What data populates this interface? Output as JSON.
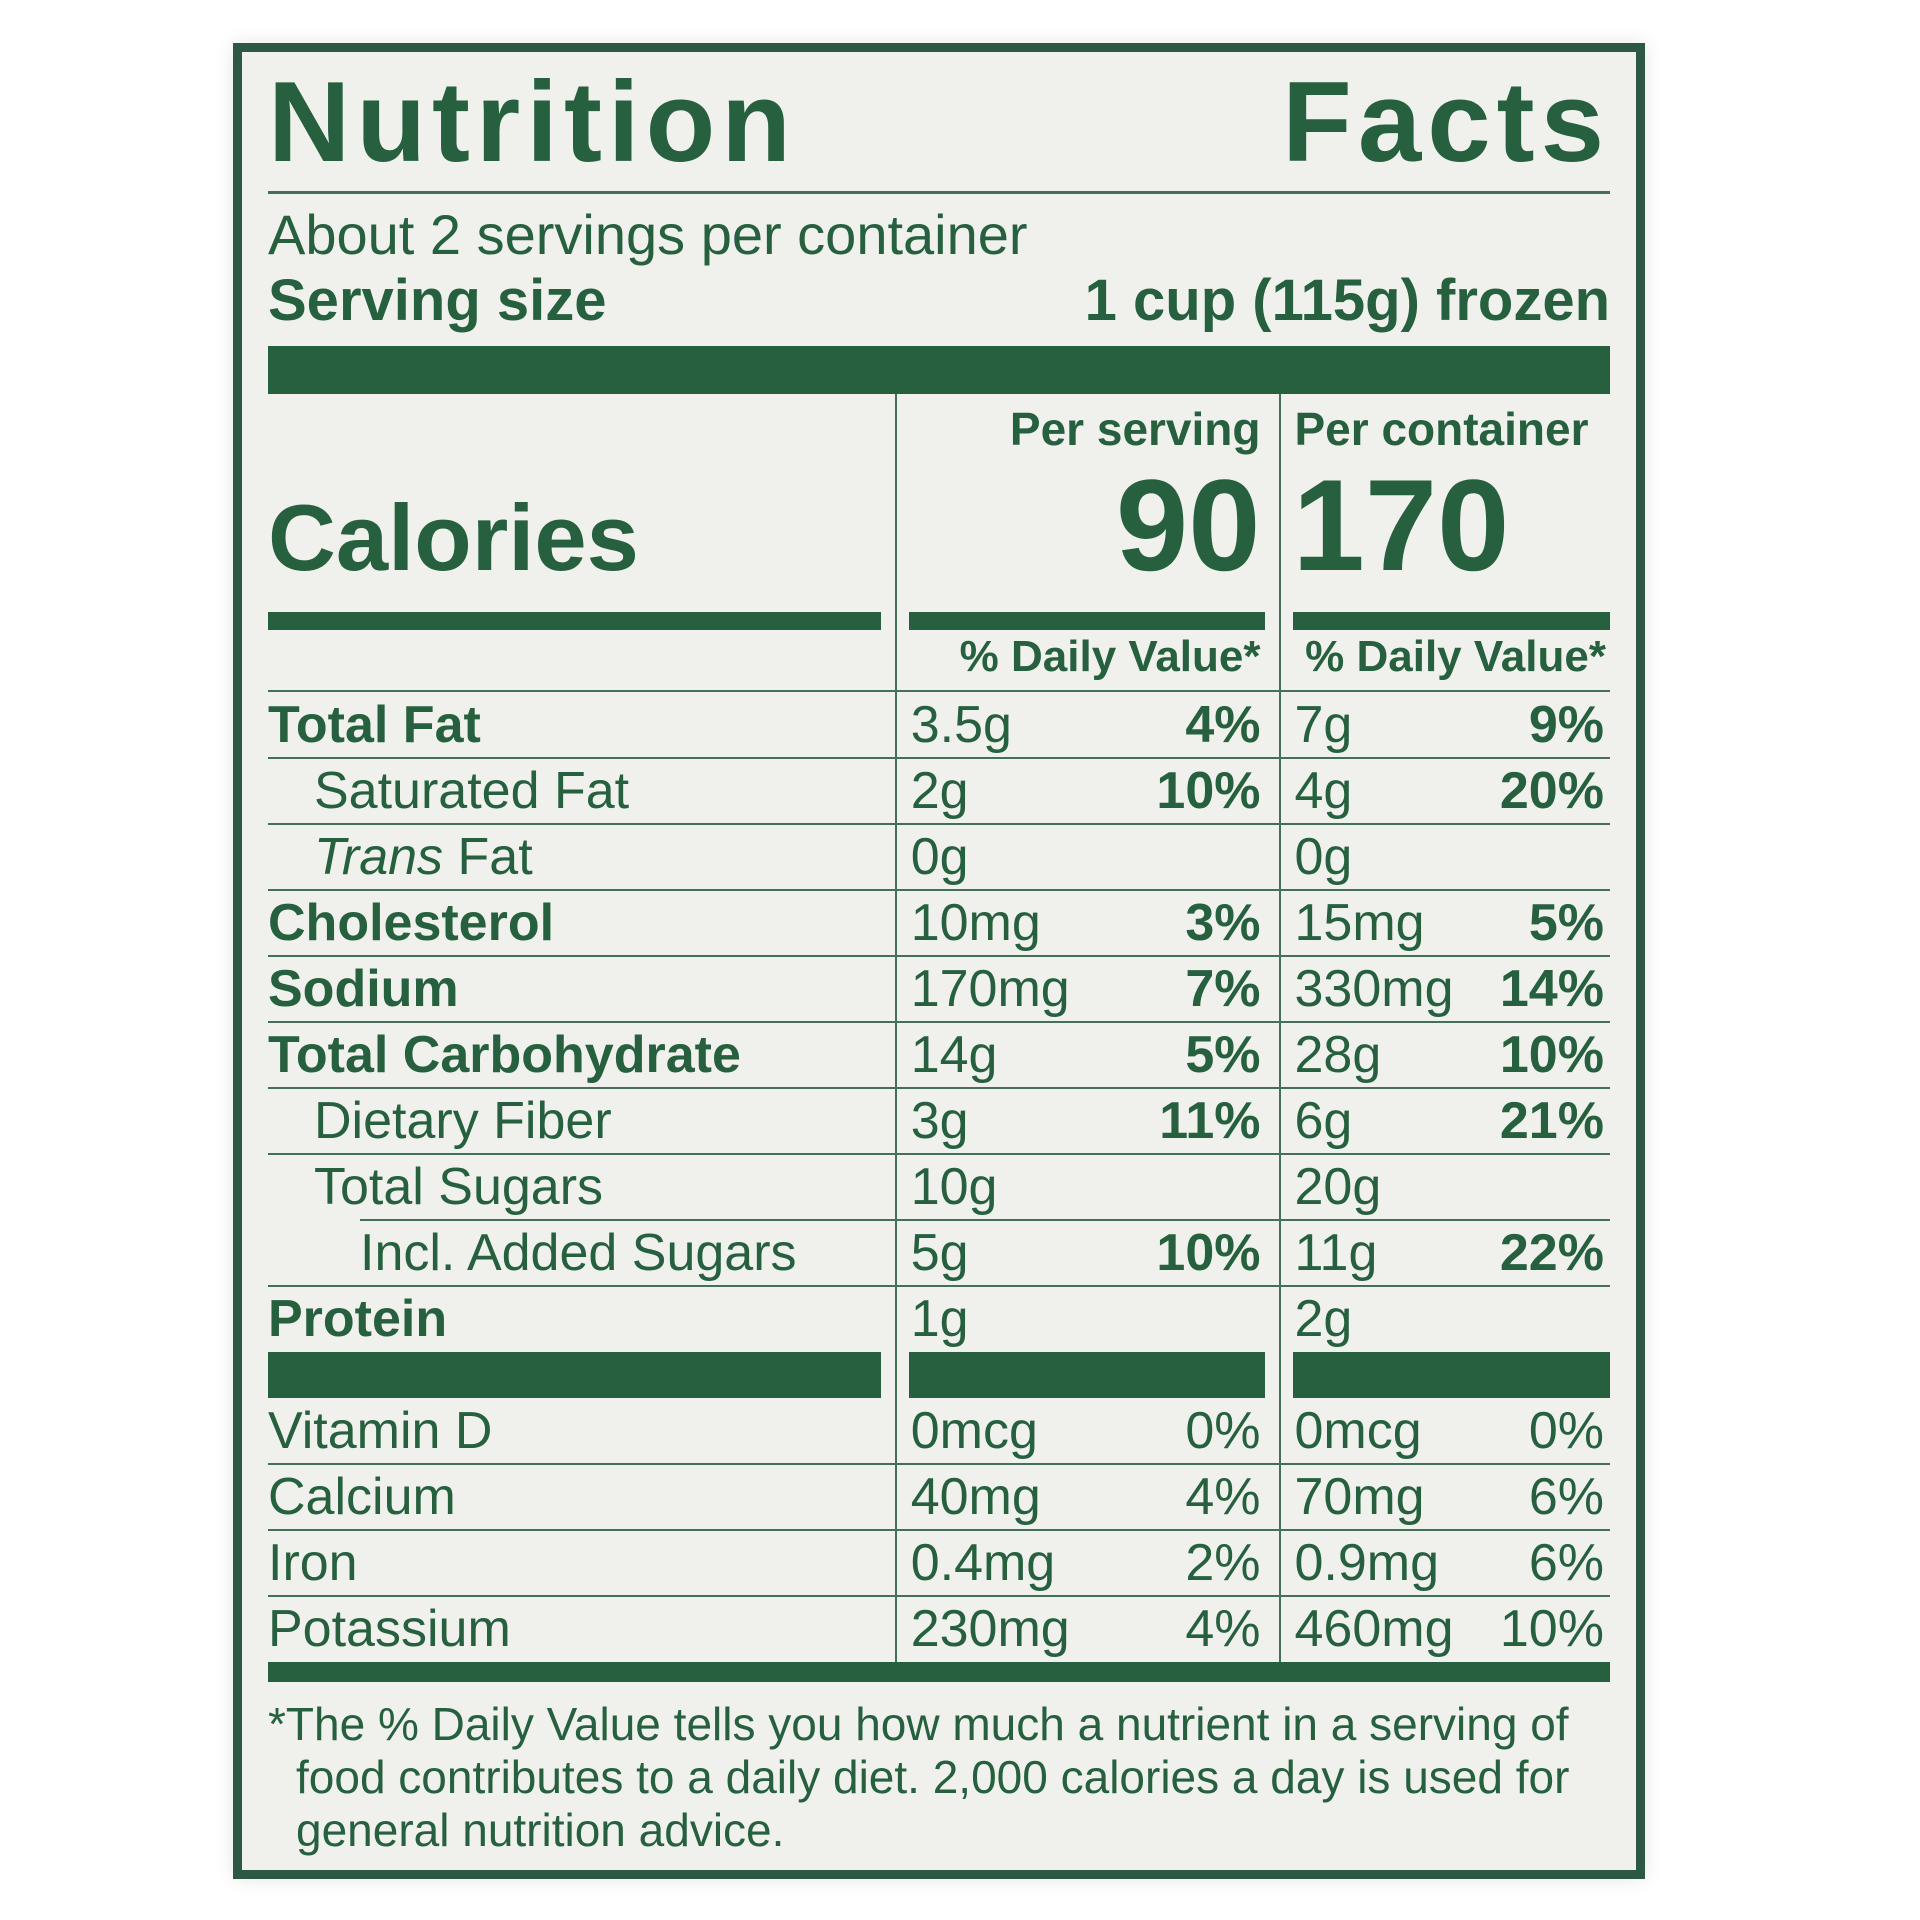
{
  "colors": {
    "green": "#26603f",
    "paper": "#f0f1ec",
    "border": "#2d5844"
  },
  "label": {
    "title": "Nutrition Facts",
    "servings_per_container": "About 2 servings per container",
    "serving_size_label": "Serving size",
    "serving_size_value": "1 cup (115g) frozen",
    "calories_label": "Calories",
    "dv_header": "% Daily Value*",
    "columns": [
      {
        "header": "Per serving",
        "calories": "90"
      },
      {
        "header": "Per container",
        "calories": "170"
      }
    ],
    "nutrients": [
      {
        "name": "Total Fat",
        "style": "bold",
        "indent": 0,
        "ps_amount": "3.5g",
        "ps_dv": "4%",
        "pc_amount": "7g",
        "pc_dv": "9%"
      },
      {
        "name": "Saturated Fat",
        "style": "regular",
        "indent": 1,
        "ps_amount": "2g",
        "ps_dv": "10%",
        "pc_amount": "4g",
        "pc_dv": "20%"
      },
      {
        "italic_prefix": "Trans",
        "name": " Fat",
        "style": "regular",
        "indent": 1,
        "ps_amount": "0g",
        "ps_dv": "",
        "pc_amount": "0g",
        "pc_dv": ""
      },
      {
        "name": "Cholesterol",
        "style": "bold",
        "indent": 0,
        "ps_amount": "10mg",
        "ps_dv": "3%",
        "pc_amount": "15mg",
        "pc_dv": "5%"
      },
      {
        "name": "Sodium",
        "style": "bold",
        "indent": 0,
        "ps_amount": "170mg",
        "ps_dv": "7%",
        "pc_amount": "330mg",
        "pc_dv": "14%"
      },
      {
        "name": "Total Carbohydrate",
        "style": "bold",
        "indent": 0,
        "ps_amount": "14g",
        "ps_dv": "5%",
        "pc_amount": "28g",
        "pc_dv": "10%"
      },
      {
        "name": "Dietary Fiber",
        "style": "regular",
        "indent": 1,
        "ps_amount": "3g",
        "ps_dv": "11%",
        "pc_amount": "6g",
        "pc_dv": "21%"
      },
      {
        "name": "Total Sugars",
        "style": "regular",
        "indent": 1,
        "ps_amount": "10g",
        "ps_dv": "",
        "pc_amount": "20g",
        "pc_dv": ""
      },
      {
        "name": "Incl. Added Sugars",
        "style": "regular",
        "indent": 2,
        "sep_indent": true,
        "ps_amount": "5g",
        "ps_dv": "10%",
        "pc_amount": "11g",
        "pc_dv": "22%"
      },
      {
        "name": "Protein",
        "style": "bold",
        "indent": 0,
        "ps_amount": "1g",
        "ps_dv": "",
        "pc_amount": "2g",
        "pc_dv": ""
      }
    ],
    "vitamins": [
      {
        "name": "Vitamin D",
        "ps_amount": "0mcg",
        "ps_dv": "0%",
        "pc_amount": "0mcg",
        "pc_dv": "0%"
      },
      {
        "name": "Calcium",
        "ps_amount": "40mg",
        "ps_dv": "4%",
        "pc_amount": "70mg",
        "pc_dv": "6%"
      },
      {
        "name": "Iron",
        "ps_amount": "0.4mg",
        "ps_dv": "2%",
        "pc_amount": "0.9mg",
        "pc_dv": "6%"
      },
      {
        "name": "Potassium",
        "ps_amount": "230mg",
        "ps_dv": "4%",
        "pc_amount": "460mg",
        "pc_dv": "10%"
      }
    ],
    "footnote": "*The % Daily Value tells you how much a nutrient in a serving of food contributes to a daily diet. 2,000 calories a day is used for general nutrition advice."
  }
}
